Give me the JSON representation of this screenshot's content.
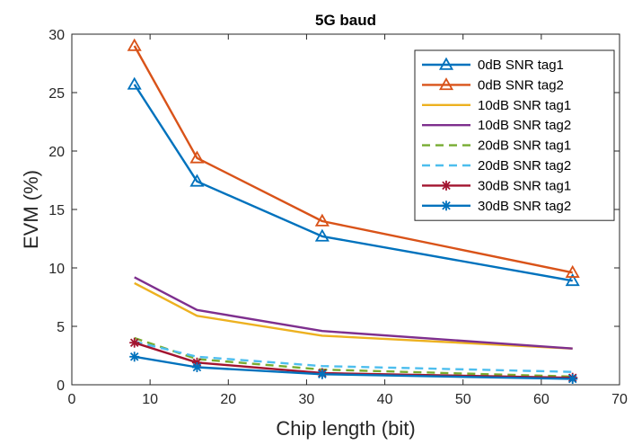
{
  "chart_data": {
    "type": "line",
    "title": "5G baud",
    "xlabel": "Chip length (bit)",
    "ylabel": "EVM (%)",
    "xlim": [
      0,
      70
    ],
    "ylim": [
      0,
      30
    ],
    "xticks": [
      0,
      10,
      20,
      30,
      40,
      50,
      60,
      70
    ],
    "yticks": [
      0,
      5,
      10,
      15,
      20,
      25,
      30
    ],
    "grid": false,
    "legend_position": "top-right",
    "x": [
      8,
      16,
      32,
      64
    ],
    "series": [
      {
        "name": "0dB SNR tag1",
        "values": [
          25.7,
          17.4,
          12.7,
          8.9
        ],
        "color": "#0072BD",
        "line": "solid",
        "marker": "triangle"
      },
      {
        "name": "0dB SNR tag2",
        "values": [
          29.0,
          19.4,
          14.0,
          9.6
        ],
        "color": "#D95319",
        "line": "solid",
        "marker": "triangle"
      },
      {
        "name": "10dB SNR tag1",
        "values": [
          8.7,
          5.9,
          4.2,
          3.1
        ],
        "color": "#EDB120",
        "line": "solid",
        "marker": "none"
      },
      {
        "name": "10dB SNR tag2",
        "values": [
          9.2,
          6.4,
          4.6,
          3.1
        ],
        "color": "#7E2F8E",
        "line": "solid",
        "marker": "none"
      },
      {
        "name": "20dB SNR tag1",
        "values": [
          4.0,
          2.2,
          1.3,
          0.7
        ],
        "color": "#77AC30",
        "line": "dashed",
        "marker": "none"
      },
      {
        "name": "20dB SNR tag2",
        "values": [
          3.7,
          2.4,
          1.6,
          1.1
        ],
        "color": "#4DBEEE",
        "line": "dashed",
        "marker": "none"
      },
      {
        "name": "30dB SNR tag1",
        "values": [
          3.6,
          1.9,
          1.0,
          0.6
        ],
        "color": "#A2142F",
        "line": "solid",
        "marker": "star"
      },
      {
        "name": "30dB SNR tag2",
        "values": [
          2.4,
          1.5,
          0.9,
          0.5
        ],
        "color": "#0072BD",
        "line": "solid",
        "marker": "star"
      }
    ]
  }
}
